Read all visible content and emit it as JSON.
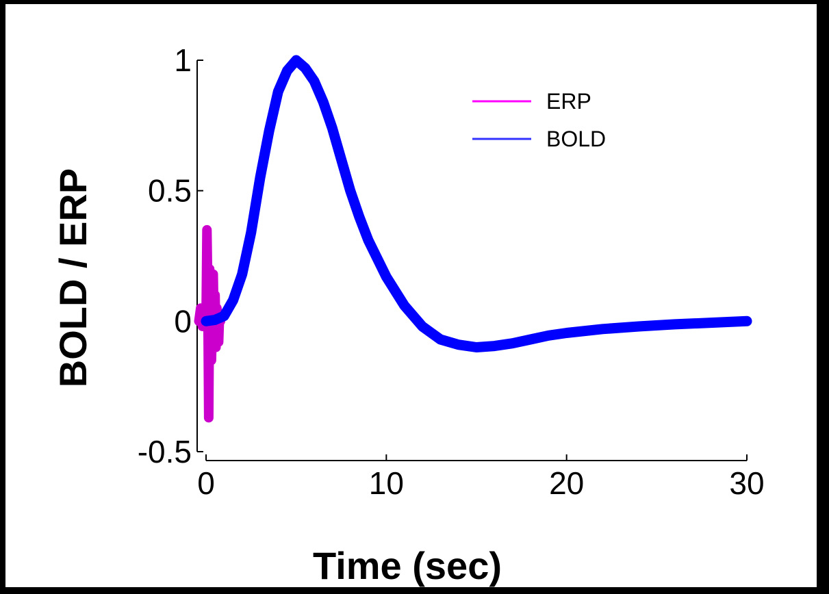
{
  "chart_data": {
    "type": "line",
    "xlabel": "Time (sec)",
    "ylabel": "BOLD / ERP",
    "xlim": [
      0,
      30
    ],
    "ylim": [
      -0.5,
      1
    ],
    "xticks": [
      0,
      10,
      20,
      30
    ],
    "xtick_labels": [
      "0",
      "10",
      "20",
      "30"
    ],
    "yticks": [
      -0.5,
      0,
      0.5,
      1
    ],
    "ytick_labels": [
      "-0.5",
      "0",
      "0.5",
      "1"
    ],
    "grid": false,
    "legend_position": "top-right",
    "series": [
      {
        "name": "ERP",
        "color": "#cc00cc",
        "x": [
          -0.4,
          -0.3,
          -0.2,
          -0.1,
          0.0,
          0.05,
          0.1,
          0.15,
          0.2,
          0.25,
          0.3,
          0.35,
          0.4,
          0.45,
          0.5,
          0.55,
          0.6,
          0.65,
          0.7,
          0.75,
          0.8
        ],
        "y": [
          0.0,
          0.05,
          -0.02,
          0.03,
          0.0,
          0.35,
          0.1,
          -0.37,
          0.2,
          0.05,
          -0.15,
          0.0,
          0.18,
          -0.05,
          0.1,
          -0.1,
          0.05,
          0.02,
          -0.08,
          0.03,
          0.0
        ]
      },
      {
        "name": "BOLD",
        "color": "#0000ff",
        "x": [
          0,
          0.5,
          1,
          1.5,
          2,
          2.5,
          3,
          3.5,
          4,
          4.5,
          5,
          5.5,
          6,
          6.5,
          7,
          7.5,
          8,
          8.5,
          9,
          10,
          11,
          12,
          13,
          14,
          15,
          16,
          17,
          18,
          19,
          20,
          22,
          24,
          26,
          28,
          30
        ],
        "y": [
          0.0,
          0.005,
          0.02,
          0.08,
          0.18,
          0.34,
          0.55,
          0.73,
          0.88,
          0.96,
          1.0,
          0.97,
          0.92,
          0.84,
          0.74,
          0.62,
          0.5,
          0.4,
          0.31,
          0.17,
          0.06,
          -0.02,
          -0.07,
          -0.09,
          -0.1,
          -0.095,
          -0.085,
          -0.07,
          -0.055,
          -0.045,
          -0.03,
          -0.02,
          -0.012,
          -0.006,
          0.0
        ]
      }
    ]
  }
}
